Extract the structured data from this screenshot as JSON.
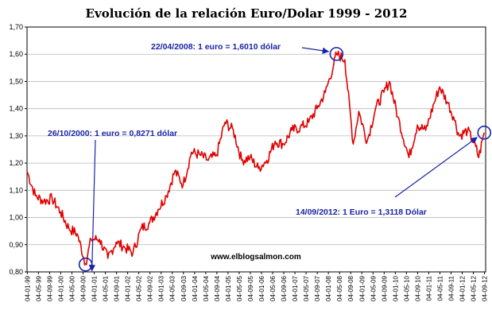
{
  "chart_data": {
    "type": "line",
    "title": "Evolución de la relación Euro/Dolar 1999 - 2012",
    "xlabel": "",
    "ylabel": "",
    "ylim": [
      0.8,
      1.7
    ],
    "y_ticks": [
      "0,80",
      "0,90",
      "1,00",
      "1,10",
      "1,20",
      "1,30",
      "1,40",
      "1,50",
      "1,60",
      "1,70"
    ],
    "x_ticks": [
      "04-01-99",
      "04-05-99",
      "04-09-99",
      "04-01-00",
      "04-05-00",
      "04-09-00",
      "04-01-01",
      "04-05-01",
      "04-09-01",
      "04-01-02",
      "04-05-02",
      "04-09-02",
      "04-01-03",
      "04-05-03",
      "04-09-03",
      "04-01-04",
      "04-05-04",
      "04-09-04",
      "04-01-05",
      "04-05-05",
      "04-09-05",
      "04-01-06",
      "04-05-06",
      "04-09-06",
      "04-01-07",
      "04-05-07",
      "04-09-07",
      "04-01-08",
      "04-05-08",
      "04-09-08",
      "04-01-09",
      "04-05-09",
      "04-09-09",
      "04-01-10",
      "04-05-10",
      "04-09-10",
      "04-01-11",
      "04-05-11",
      "04-09-11",
      "04-01-12",
      "04-05-12",
      "04-09-12"
    ],
    "grid": true,
    "legend": "none",
    "series": [
      {
        "color": "#e00000",
        "x": [
          "1999-01",
          "1999-04",
          "1999-07",
          "1999-10",
          "2000-01",
          "2000-04",
          "2000-07",
          "2000-10",
          "2000-12",
          "2001-03",
          "2001-06",
          "2001-09",
          "2001-12",
          "2002-03",
          "2002-06",
          "2002-09",
          "2002-12",
          "2003-03",
          "2003-06",
          "2003-09",
          "2003-12",
          "2004-03",
          "2004-06",
          "2004-09",
          "2004-12",
          "2005-03",
          "2005-06",
          "2005-09",
          "2005-12",
          "2006-03",
          "2006-06",
          "2006-09",
          "2006-12",
          "2007-03",
          "2007-06",
          "2007-09",
          "2007-12",
          "2008-03",
          "2008-04",
          "2008-07",
          "2008-10",
          "2008-12",
          "2009-03",
          "2009-06",
          "2009-09",
          "2009-11",
          "2010-02",
          "2010-06",
          "2010-09",
          "2010-12",
          "2011-03",
          "2011-05",
          "2011-08",
          "2011-10",
          "2011-12",
          "2012-03",
          "2012-06",
          "2012-07",
          "2012-09"
        ],
        "values": [
          1.17,
          1.08,
          1.06,
          1.07,
          1.02,
          0.96,
          0.94,
          0.83,
          0.92,
          0.92,
          0.85,
          0.91,
          0.89,
          0.87,
          0.96,
          0.98,
          1.03,
          1.08,
          1.17,
          1.12,
          1.24,
          1.23,
          1.21,
          1.23,
          1.35,
          1.32,
          1.21,
          1.22,
          1.18,
          1.21,
          1.28,
          1.27,
          1.32,
          1.33,
          1.35,
          1.4,
          1.46,
          1.56,
          1.601,
          1.58,
          1.27,
          1.39,
          1.28,
          1.4,
          1.46,
          1.5,
          1.37,
          1.22,
          1.34,
          1.32,
          1.42,
          1.48,
          1.42,
          1.37,
          1.3,
          1.32,
          1.26,
          1.22,
          1.3118
        ]
      }
    ],
    "annotations": [
      {
        "text": "22/04/2008: 1 euro = 1,6010 dólar",
        "x": "2008-04",
        "y": 1.601
      },
      {
        "text": "26/10/2000: 1 euro = 0,8271 dólar",
        "x": "2000-10",
        "y": 0.8271
      },
      {
        "text": "14/09/2012: 1 Euro = 1,3118 Dólar",
        "x": "2012-09",
        "y": 1.3118
      }
    ],
    "watermark": "www.elblogsalmon.com"
  }
}
